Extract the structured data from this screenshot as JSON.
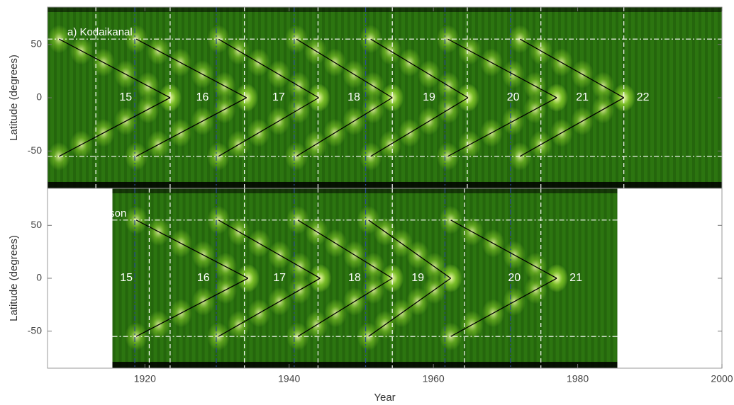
{
  "chart_data": [
    {
      "type": "heatmap",
      "title": "a) Kodaikanal",
      "ylabel": "Latitude (degrees)",
      "xlim": [
        1906.5,
        2000
      ],
      "ylim": [
        -85,
        85
      ],
      "yticks": [
        -50,
        0,
        50
      ],
      "extent": [
        1906.5,
        2000
      ],
      "color": "#2c7510",
      "highlight": "#eef7b0",
      "hlines": [
        55,
        -55
      ],
      "cycles": [
        {
          "label": "15",
          "start": 1908.1,
          "apex": 1923.5
        },
        {
          "label": "16",
          "start": 1918.8,
          "apex": 1934.1
        },
        {
          "label": "17",
          "start": 1930.2,
          "apex": 1944.1
        },
        {
          "label": "18",
          "start": 1941.0,
          "apex": 1954.3
        },
        {
          "label": "19",
          "start": 1951.3,
          "apex": 1964.8
        },
        {
          "label": "20",
          "start": 1962.0,
          "apex": 1977.1
        },
        {
          "label": "21",
          "start": 1972.0,
          "apex": 1986.4
        },
        {
          "label": "22"
        }
      ],
      "maxima": [
        1913.2,
        1923.5,
        1933.8,
        1944.0,
        1954.3,
        1964.7,
        1974.9,
        1986.4
      ],
      "minima": [
        1918.6,
        1929.9,
        1940.7,
        1950.6,
        1961.6,
        1970.7
      ]
    },
    {
      "type": "heatmap",
      "title": "b) Mt Wilson",
      "ylabel": "Latitude (degrees)",
      "xlabel": "Year",
      "xlim": [
        1906.5,
        2000
      ],
      "ylim": [
        -85,
        85
      ],
      "yticks": [
        -50,
        0,
        50
      ],
      "xticks": [
        1920,
        1940,
        1960,
        1980,
        2000
      ],
      "extent": [
        1915.5,
        1985.5
      ],
      "color": "#2c7510",
      "highlight": "#eef7b0",
      "hlines": [
        55,
        -55
      ],
      "cycles": [
        {
          "label": "15"
        },
        {
          "label": "16",
          "start": 1918.8,
          "apex": 1934.3
        },
        {
          "label": "17",
          "start": 1930.2,
          "apex": 1944.3
        },
        {
          "label": "18",
          "start": 1941.2,
          "apex": 1954.3
        },
        {
          "label": "19",
          "start": 1951.0,
          "apex": 1962.4
        },
        {
          "label": "20",
          "start": 1962.4,
          "apex": 1977.1
        },
        {
          "label": "21"
        }
      ],
      "maxima": [
        1920.6,
        1923.5,
        1933.8,
        1944.0,
        1954.3,
        1964.3,
        1974.9
      ],
      "minima": [
        1918.6,
        1929.9,
        1940.7,
        1950.6,
        1961.6,
        1970.7
      ]
    }
  ]
}
